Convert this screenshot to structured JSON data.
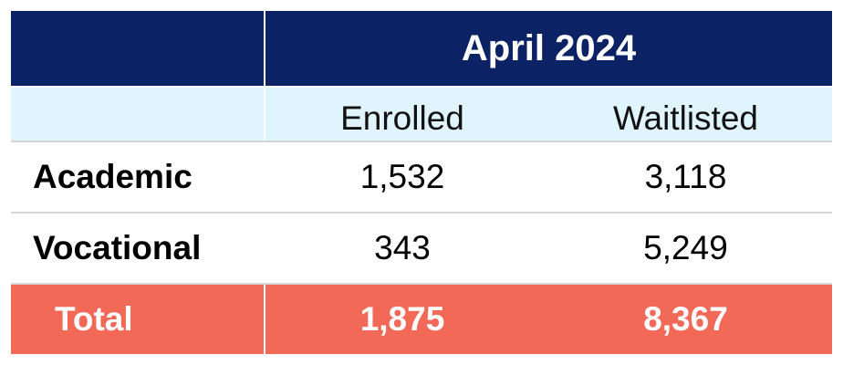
{
  "table": {
    "period": "April 2024",
    "columns": [
      "Enrolled",
      "Waitlisted"
    ],
    "rows": [
      {
        "label": "Academic",
        "enrolled": "1,532",
        "waitlisted": "3,118"
      },
      {
        "label": "Vocational",
        "enrolled": "343",
        "waitlisted": "5,249"
      }
    ],
    "total": {
      "label": "Total",
      "enrolled": "1,875",
      "waitlisted": "8,367"
    }
  },
  "colors": {
    "header_bg": "#0b2265",
    "subheader_bg": "#e0f4fd",
    "total_bg": "#f26958",
    "header_text": "#ffffff"
  }
}
